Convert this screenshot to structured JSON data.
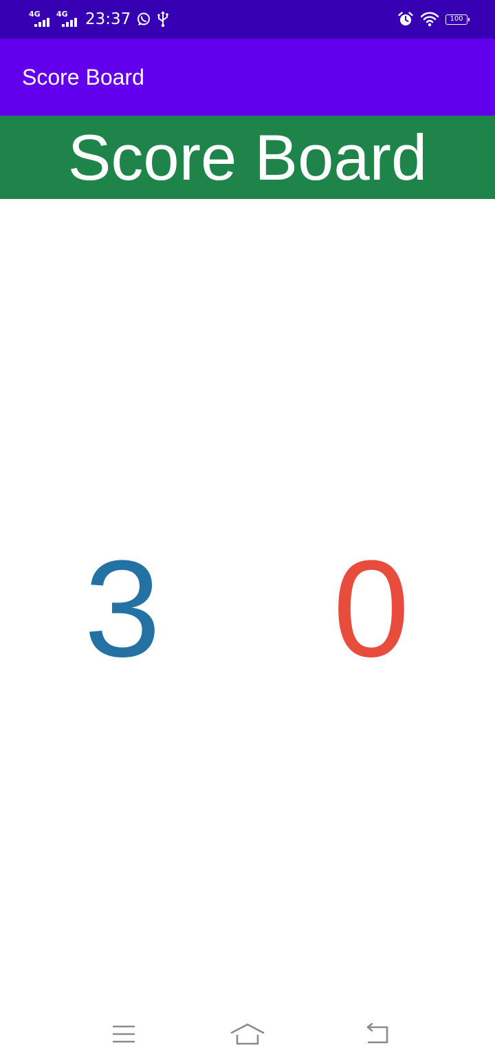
{
  "status_bar": {
    "sim1_network": "4G",
    "sim2_network": "4G",
    "time": "23:37",
    "battery_level": "100",
    "background_color": "#3700b3",
    "left_icons": [
      "signal-icon",
      "signal-icon",
      "whatsapp-icon",
      "usb-icon"
    ],
    "right_icons": [
      "alarm-icon",
      "wifi-icon",
      "battery-icon"
    ]
  },
  "app_bar": {
    "title": "Score Board",
    "background_color": "#6200ee"
  },
  "banner": {
    "title": "Score Board",
    "background_color": "#1f8449"
  },
  "scores": {
    "left": {
      "value": "3",
      "color": "#2471a3"
    },
    "right": {
      "value": "0",
      "color": "#e74c3c"
    }
  },
  "nav_bar": {
    "icons": [
      "menu-icon",
      "home-icon",
      "back-icon"
    ]
  }
}
